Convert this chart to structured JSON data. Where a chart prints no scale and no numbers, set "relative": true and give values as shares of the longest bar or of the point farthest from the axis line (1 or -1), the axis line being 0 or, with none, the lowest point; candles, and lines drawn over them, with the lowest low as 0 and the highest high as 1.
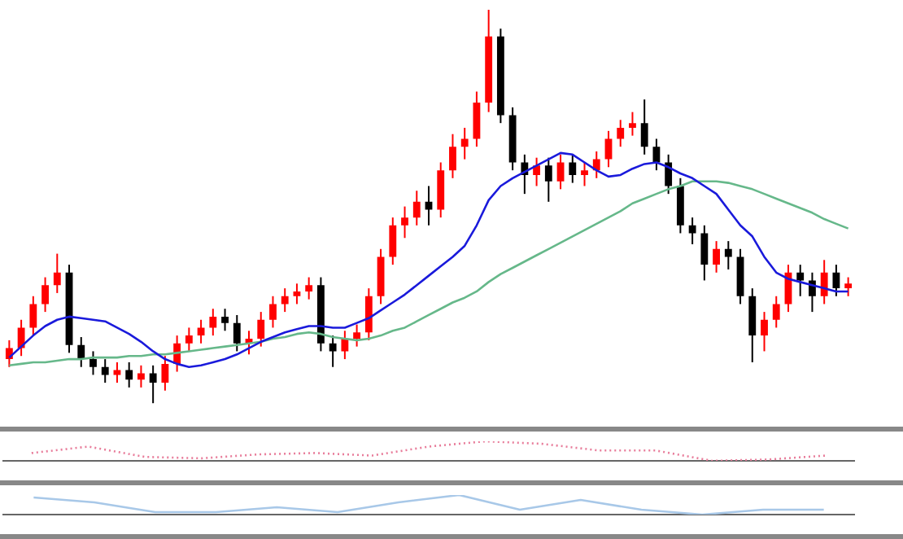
{
  "chart_data": [
    {
      "type": "candlestick",
      "relative": true,
      "legend": false,
      "categories": [
        null,
        null,
        null,
        null,
        null,
        null,
        null,
        null,
        null,
        null,
        null,
        null,
        null,
        null,
        null,
        null,
        null,
        null,
        null,
        null,
        null,
        null,
        null,
        null,
        null,
        null,
        null,
        null,
        null,
        null,
        null,
        null,
        null,
        null,
        null,
        null,
        null,
        null,
        null,
        null,
        null,
        null,
        null,
        null,
        null,
        null,
        null,
        null,
        null,
        null,
        null,
        null,
        null,
        null,
        null,
        null,
        null,
        null,
        null,
        null,
        null,
        null,
        null,
        null,
        null,
        null,
        null,
        null,
        null,
        null,
        null
      ],
      "ohlc": [
        [
          0.112,
          0.16,
          0.092,
          0.14
        ],
        [
          0.14,
          0.212,
          0.12,
          0.192
        ],
        [
          0.192,
          0.272,
          0.172,
          0.252
        ],
        [
          0.252,
          0.32,
          0.232,
          0.3
        ],
        [
          0.3,
          0.38,
          0.28,
          0.332
        ],
        [
          0.332,
          0.352,
          0.128,
          0.148
        ],
        [
          0.148,
          0.168,
          0.092,
          0.112
        ],
        [
          0.112,
          0.132,
          0.072,
          0.092
        ],
        [
          0.092,
          0.112,
          0.052,
          0.072
        ],
        [
          0.072,
          0.104,
          0.052,
          0.084
        ],
        [
          0.084,
          0.104,
          0.04,
          0.06
        ],
        [
          0.06,
          0.096,
          0.04,
          0.076
        ],
        [
          0.076,
          0.096,
          0,
          0.052
        ],
        [
          0.052,
          0.12,
          0.032,
          0.1
        ],
        [
          0.1,
          0.172,
          0.08,
          0.152
        ],
        [
          0.152,
          0.192,
          0.132,
          0.172
        ],
        [
          0.172,
          0.212,
          0.152,
          0.192
        ],
        [
          0.192,
          0.24,
          0.172,
          0.22
        ],
        [
          0.22,
          0.24,
          0.184,
          0.204
        ],
        [
          0.204,
          0.224,
          0.132,
          0.152
        ],
        [
          0.152,
          0.184,
          0.124,
          0.164
        ],
        [
          0.164,
          0.232,
          0.144,
          0.212
        ],
        [
          0.212,
          0.272,
          0.192,
          0.252
        ],
        [
          0.252,
          0.292,
          0.232,
          0.272
        ],
        [
          0.272,
          0.304,
          0.252,
          0.284
        ],
        [
          0.284,
          0.32,
          0.264,
          0.3
        ],
        [
          0.3,
          0.32,
          0.132,
          0.152
        ],
        [
          0.152,
          0.172,
          0.092,
          0.132
        ],
        [
          0.132,
          0.184,
          0.112,
          0.164
        ],
        [
          0.164,
          0.2,
          0.144,
          0.18
        ],
        [
          0.18,
          0.292,
          0.16,
          0.272
        ],
        [
          0.272,
          0.392,
          0.252,
          0.372
        ],
        [
          0.372,
          0.472,
          0.352,
          0.452
        ],
        [
          0.452,
          0.5,
          0.42,
          0.472
        ],
        [
          0.472,
          0.54,
          0.452,
          0.512
        ],
        [
          0.512,
          0.552,
          0.452,
          0.492
        ],
        [
          0.492,
          0.612,
          0.472,
          0.592
        ],
        [
          0.592,
          0.684,
          0.572,
          0.652
        ],
        [
          0.652,
          0.7,
          0.62,
          0.672
        ],
        [
          0.672,
          0.792,
          0.652,
          0.764
        ],
        [
          0.764,
          1,
          0.74,
          0.932
        ],
        [
          0.932,
          0.952,
          0.712,
          0.732
        ],
        [
          0.732,
          0.752,
          0.592,
          0.612
        ],
        [
          0.612,
          0.632,
          0.532,
          0.58
        ],
        [
          0.58,
          0.624,
          0.552,
          0.604
        ],
        [
          0.604,
          0.624,
          0.512,
          0.564
        ],
        [
          0.564,
          0.632,
          0.544,
          0.612
        ],
        [
          0.612,
          0.632,
          0.56,
          0.58
        ],
        [
          0.58,
          0.612,
          0.552,
          0.592
        ],
        [
          0.592,
          0.64,
          0.572,
          0.62
        ],
        [
          0.62,
          0.692,
          0.6,
          0.672
        ],
        [
          0.672,
          0.72,
          0.652,
          0.7
        ],
        [
          0.7,
          0.74,
          0.68,
          0.712
        ],
        [
          0.712,
          0.772,
          0.632,
          0.652
        ],
        [
          0.652,
          0.672,
          0.592,
          0.612
        ],
        [
          0.612,
          0.632,
          0.532,
          0.552
        ],
        [
          0.552,
          0.572,
          0.432,
          0.452
        ],
        [
          0.452,
          0.472,
          0.404,
          0.432
        ],
        [
          0.432,
          0.452,
          0.312,
          0.352
        ],
        [
          0.352,
          0.412,
          0.332,
          0.392
        ],
        [
          0.392,
          0.412,
          0.34,
          0.372
        ],
        [
          0.372,
          0.392,
          0.252,
          0.272
        ],
        [
          0.272,
          0.292,
          0.104,
          0.172
        ],
        [
          0.172,
          0.232,
          0.132,
          0.212
        ],
        [
          0.212,
          0.272,
          0.192,
          0.252
        ],
        [
          0.252,
          0.352,
          0.232,
          0.332
        ],
        [
          0.332,
          0.352,
          0.272,
          0.312
        ],
        [
          0.312,
          0.332,
          0.232,
          0.272
        ],
        [
          0.272,
          0.364,
          0.252,
          0.332
        ],
        [
          0.332,
          0.352,
          0.272,
          0.292
        ],
        [
          0.292,
          0.32,
          0.272,
          0.304
        ]
      ],
      "colors": [
        "#ff0000",
        "#ff0000",
        "#ff0000",
        "#ff0000",
        "#ff0000",
        "#000000",
        "#000000",
        "#000000",
        "#000000",
        "#ff0000",
        "#000000",
        "#ff0000",
        "#000000",
        "#ff0000",
        "#ff0000",
        "#ff0000",
        "#ff0000",
        "#ff0000",
        "#000000",
        "#000000",
        "#ff0000",
        "#ff0000",
        "#ff0000",
        "#ff0000",
        "#ff0000",
        "#ff0000",
        "#000000",
        "#000000",
        "#ff0000",
        "#ff0000",
        "#ff0000",
        "#ff0000",
        "#ff0000",
        "#ff0000",
        "#ff0000",
        "#000000",
        "#ff0000",
        "#ff0000",
        "#ff0000",
        "#ff0000",
        "#ff0000",
        "#000000",
        "#000000",
        "#000000",
        "#ff0000",
        "#000000",
        "#ff0000",
        "#000000",
        "#ff0000",
        "#ff0000",
        "#ff0000",
        "#ff0000",
        "#ff0000",
        "#000000",
        "#000000",
        "#000000",
        "#000000",
        "#000000",
        "#000000",
        "#ff0000",
        "#000000",
        "#000000",
        "#000000",
        "#ff0000",
        "#ff0000",
        "#ff0000",
        "#000000",
        "#000000",
        "#ff0000",
        "#000000",
        "#ff0000"
      ],
      "series": [
        {
          "type": "line",
          "color": "#1a1adb",
          "values": [
            0.116,
            0.144,
            0.172,
            0.196,
            0.212,
            0.22,
            0.216,
            0.212,
            0.208,
            0.192,
            0.176,
            0.156,
            0.132,
            0.112,
            0.1,
            0.092,
            0.096,
            0.104,
            0.112,
            0.124,
            0.14,
            0.156,
            0.168,
            0.18,
            0.188,
            0.196,
            0.196,
            0.192,
            0.192,
            0.204,
            0.216,
            0.236,
            0.256,
            0.276,
            0.3,
            0.324,
            0.348,
            0.372,
            0.4,
            0.452,
            0.516,
            0.552,
            0.572,
            0.588,
            0.604,
            0.62,
            0.636,
            0.632,
            0.612,
            0.592,
            0.576,
            0.58,
            0.596,
            0.608,
            0.612,
            0.6,
            0.584,
            0.572,
            0.552,
            0.532,
            0.492,
            0.452,
            0.424,
            0.372,
            0.332,
            0.316,
            0.308,
            0.3,
            0.292,
            0.284,
            0.284
          ]
        },
        {
          "type": "line",
          "color": "#66b88a",
          "values": [
            0.096,
            0.1,
            0.104,
            0.104,
            0.108,
            0.112,
            0.112,
            0.116,
            0.116,
            0.116,
            0.12,
            0.12,
            0.124,
            0.124,
            0.128,
            0.132,
            0.136,
            0.14,
            0.144,
            0.148,
            0.152,
            0.156,
            0.164,
            0.168,
            0.176,
            0.18,
            0.176,
            0.168,
            0.164,
            0.16,
            0.164,
            0.172,
            0.184,
            0.192,
            0.208,
            0.224,
            0.24,
            0.256,
            0.268,
            0.284,
            0.308,
            0.328,
            0.344,
            0.36,
            0.376,
            0.392,
            0.408,
            0.424,
            0.44,
            0.456,
            0.472,
            0.488,
            0.508,
            0.52,
            0.532,
            0.544,
            0.552,
            0.564,
            0.564,
            0.564,
            0.56,
            0.552,
            0.544,
            0.532,
            0.52,
            0.508,
            0.496,
            0.484,
            0.468,
            0.456,
            0.444
          ]
        }
      ]
    },
    {
      "type": "line",
      "relative": true,
      "legend": false,
      "line_style": "dotted",
      "categories": [
        null,
        null,
        null,
        null,
        null,
        null,
        null,
        null,
        null,
        null,
        null,
        null,
        null,
        null,
        null
      ],
      "series": [
        {
          "color": "#e87c9a",
          "values": [
            0.4,
            0.73,
            0.2,
            0.13,
            0.33,
            0.4,
            0.27,
            0.73,
            1,
            0.87,
            0.53,
            0.53,
            0,
            0.07,
            0.27
          ]
        }
      ]
    },
    {
      "type": "line",
      "relative": true,
      "legend": false,
      "categories": [
        null,
        null,
        null,
        null,
        null,
        null,
        null,
        null,
        null,
        null,
        null,
        null,
        null,
        null
      ],
      "series": [
        {
          "color": "#a8c8e8",
          "values": [
            0.875,
            0.625,
            0.125,
            0.125,
            0.375,
            0.125,
            0.625,
            1,
            0.25,
            0.75,
            0.25,
            0,
            0.25,
            0.25
          ]
        }
      ]
    }
  ]
}
